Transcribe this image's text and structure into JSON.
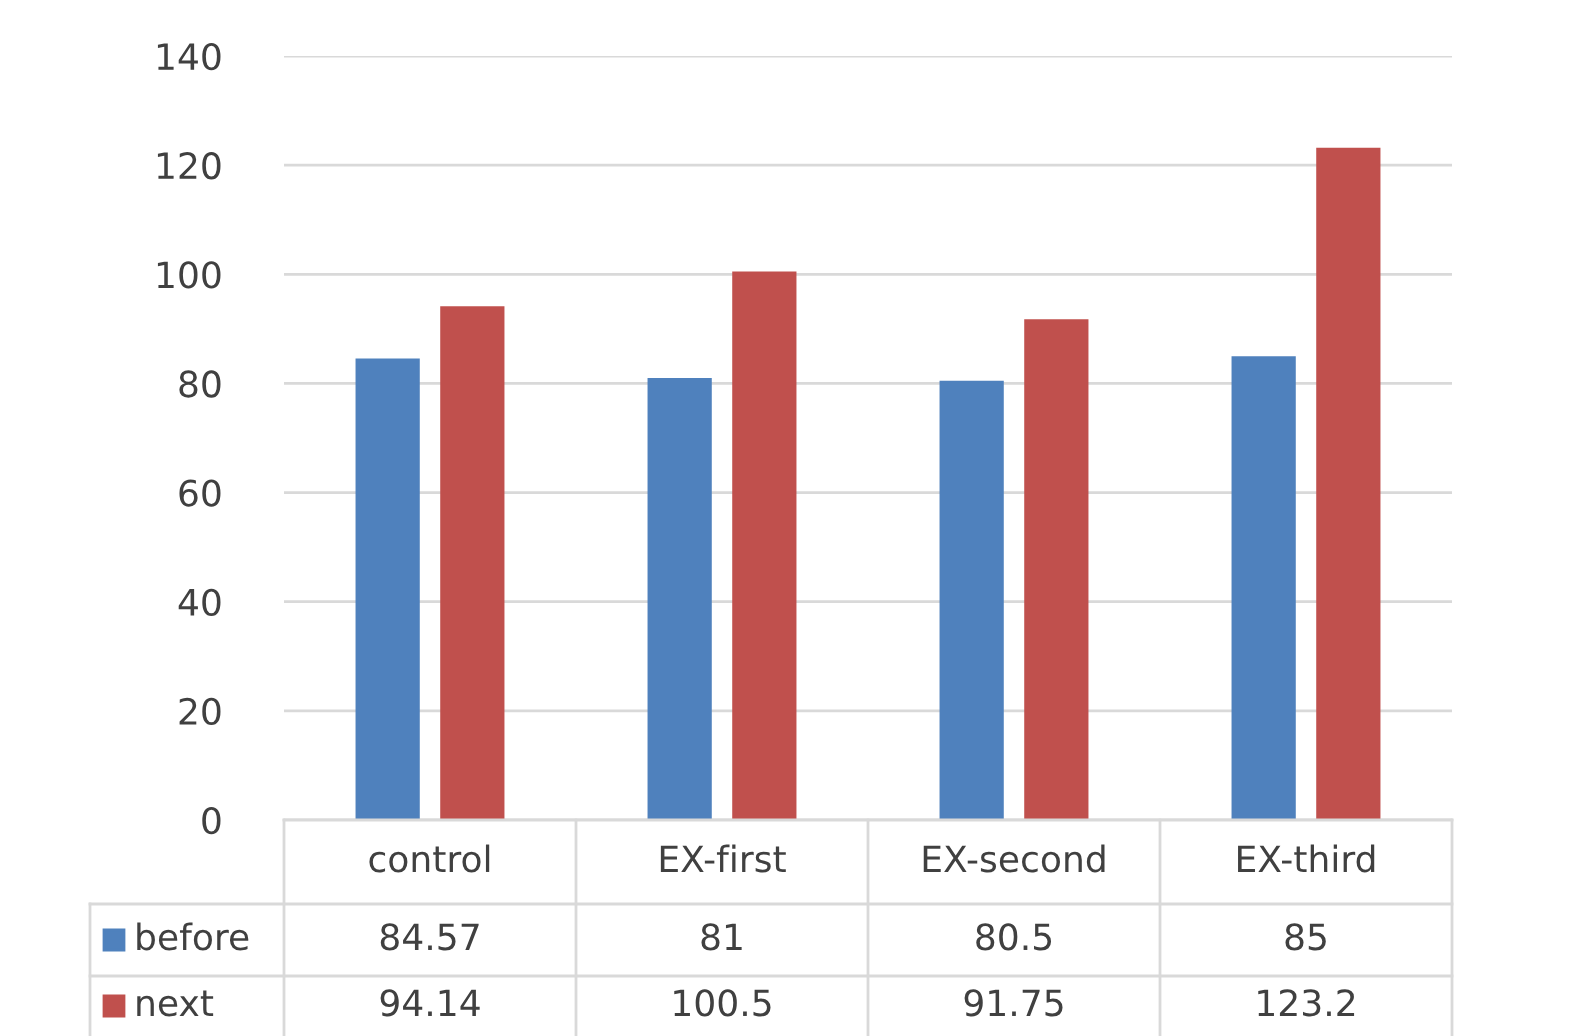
{
  "chart_data": {
    "type": "bar",
    "categories": [
      "control",
      "EX-first",
      "EX-second",
      "EX-third"
    ],
    "series": [
      {
        "name": "before",
        "color": "#4f81bd",
        "values": [
          84.57,
          81,
          80.5,
          85
        ]
      },
      {
        "name": "next",
        "color": "#c0504d",
        "values": [
          94.14,
          100.5,
          91.75,
          123.2
        ]
      }
    ],
    "ylim": [
      0,
      140
    ],
    "yticks": [
      0,
      20,
      40,
      60,
      80,
      100,
      120,
      140
    ],
    "grid": "y",
    "legend": "bottom",
    "data_labels": true
  }
}
